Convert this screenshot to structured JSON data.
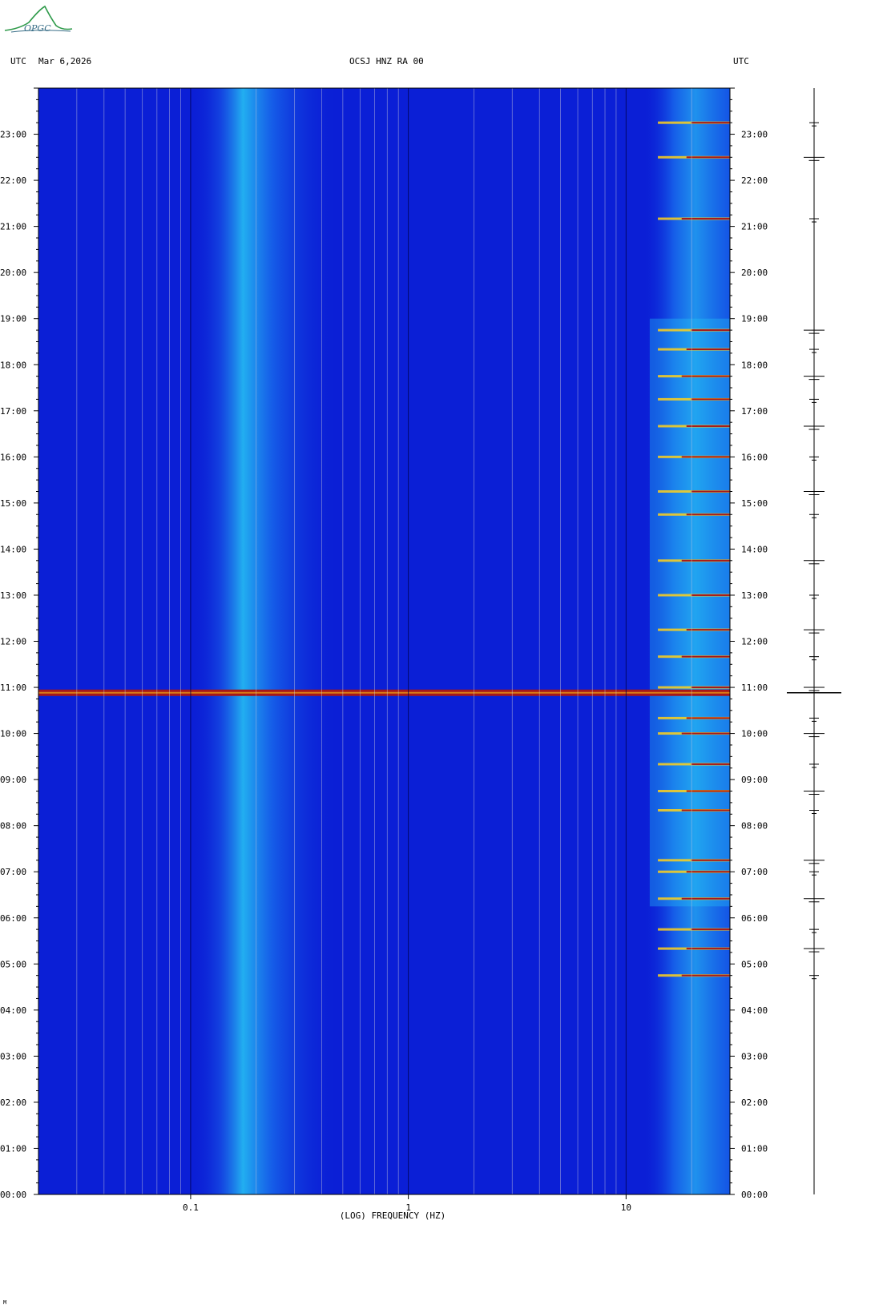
{
  "header": {
    "left_tz": "UTC",
    "date": "Mar 6,2026",
    "station": "OCSJ HNZ RA 00",
    "right_tz": "UTC"
  },
  "logo": {
    "text": "OPGC",
    "icon": "wave-arc-logo"
  },
  "footer_mark": "M",
  "colors": {
    "background": "#0b1fd6",
    "low_band": "#1a78f0",
    "high_band": "#26c8f5",
    "event": "#ffd11a",
    "event_strong": "#a81818",
    "trace": "#000000"
  },
  "chart_data": {
    "type": "heatmap",
    "title": "OCSJ HNZ RA 00",
    "xlabel": "(LOG) FREQUENCY (HZ)",
    "ylabel": "UTC",
    "x_scale": "log",
    "xlim": [
      0.02,
      30
    ],
    "ylim": [
      "00:00",
      "24:00"
    ],
    "x_ticks": [
      {
        "value": 0.1,
        "label": "0.1"
      },
      {
        "value": 1,
        "label": "1"
      },
      {
        "value": 10,
        "label": "10"
      }
    ],
    "y_ticks": [
      "00:00",
      "01:00",
      "02:00",
      "03:00",
      "04:00",
      "05:00",
      "06:00",
      "07:00",
      "08:00",
      "09:00",
      "10:00",
      "11:00",
      "12:00",
      "13:00",
      "14:00",
      "15:00",
      "16:00",
      "17:00",
      "18:00",
      "19:00",
      "20:00",
      "21:00",
      "22:00",
      "23:00"
    ],
    "grid": true,
    "features": {
      "microseism_band_hz": [
        0.12,
        0.4
      ],
      "noise_band_hz": [
        12,
        30
      ],
      "broadband_event_utc": "10:53",
      "active_period_utc": [
        "06:15",
        "19:00"
      ],
      "event_times_utc": [
        "04:45",
        "05:20",
        "05:45",
        "06:25",
        "07:00",
        "07:15",
        "08:20",
        "08:45",
        "09:20",
        "10:00",
        "10:20",
        "11:00",
        "11:40",
        "12:15",
        "13:00",
        "13:45",
        "14:45",
        "15:15",
        "16:00",
        "16:40",
        "17:15",
        "17:45",
        "18:20",
        "18:45",
        "21:10",
        "22:30",
        "23:15"
      ]
    }
  }
}
